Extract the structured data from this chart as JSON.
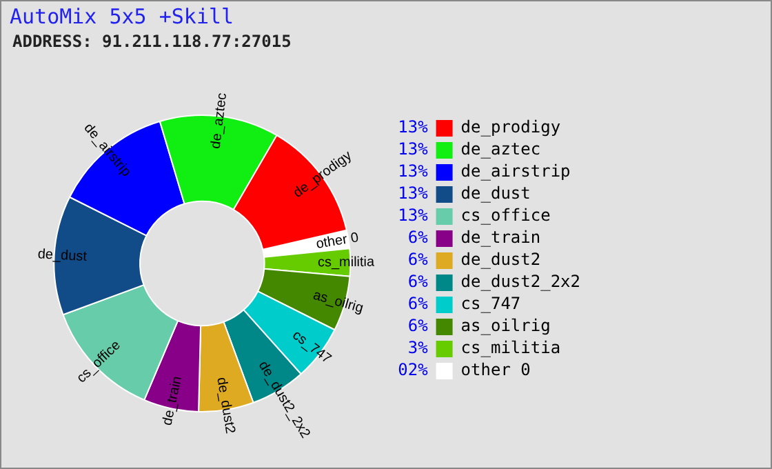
{
  "chart_data": {
    "type": "donut",
    "title": "AutoMix 5x5 +Skill",
    "subtitle": "ADDRESS: 91.211.118.77:27015",
    "categories": [
      "de_prodigy",
      "de_aztec",
      "de_airstrip",
      "de_dust",
      "cs_office",
      "de_train",
      "de_dust2",
      "de_dust2_2x2",
      "cs_747",
      "as_oilrig",
      "cs_militia",
      "other 0"
    ],
    "values": [
      13,
      13,
      13,
      13,
      13,
      6,
      6,
      6,
      6,
      6,
      3,
      2
    ],
    "value_labels": [
      "13%",
      "13%",
      "13%",
      "13%",
      "13%",
      "6%",
      "6%",
      "6%",
      "6%",
      "6%",
      "3%",
      "02%"
    ],
    "colors": [
      "#ff0000",
      "#11ee11",
      "#0000ff",
      "#114c88",
      "#66ccaa",
      "#880088",
      "#ddaa22",
      "#008888",
      "#00cccc",
      "#448800",
      "#66cc00",
      "#ffffff"
    ],
    "legend": "right"
  }
}
